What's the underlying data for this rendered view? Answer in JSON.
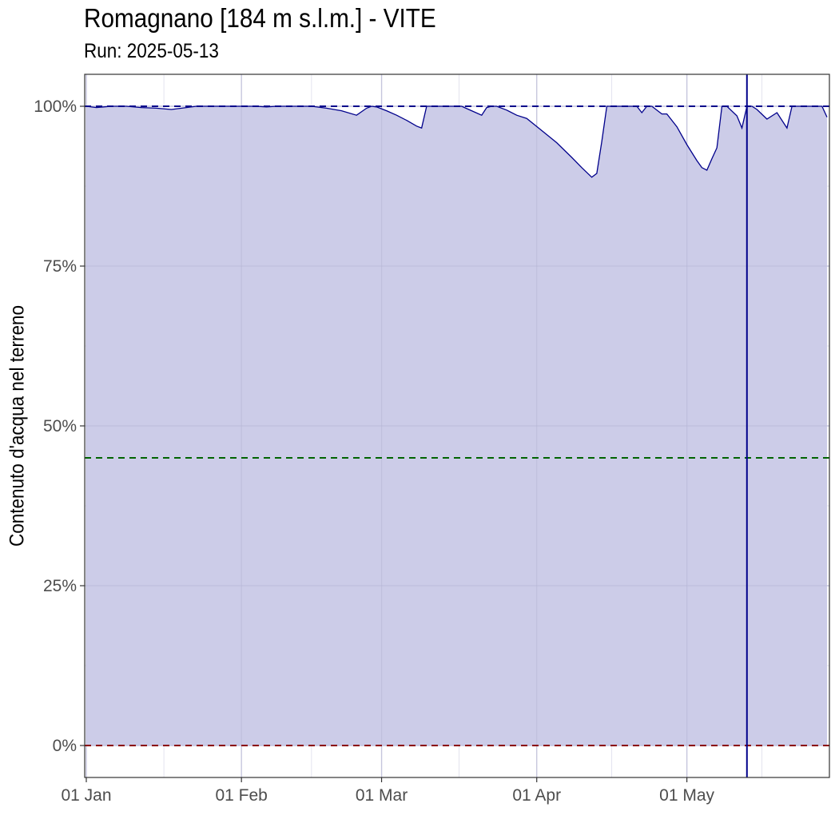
{
  "chart_data": {
    "type": "area",
    "title": "Romagnano [184 m s.l.m.] - VITE",
    "subtitle": "Run: 2025-05-13",
    "xlabel": "",
    "ylabel": "Contenuto d'acqua nel terreno",
    "x_range": [
      "2025-01-01",
      "2025-05-29"
    ],
    "ylim": [
      -0.05,
      1.05
    ],
    "y_ticks": [
      {
        "value": 0,
        "label": "0%"
      },
      {
        "value": 0.25,
        "label": "25%"
      },
      {
        "value": 0.5,
        "label": "50%"
      },
      {
        "value": 0.75,
        "label": "75%"
      },
      {
        "value": 1,
        "label": "100%"
      }
    ],
    "x_ticks": [
      {
        "date": "2025-01-01",
        "label": "01 Jan"
      },
      {
        "date": "2025-02-01",
        "label": "01 Feb"
      },
      {
        "date": "2025-03-01",
        "label": "01 Mar"
      },
      {
        "date": "2025-04-01",
        "label": "01 Apr"
      },
      {
        "date": "2025-05-01",
        "label": "01 May"
      }
    ],
    "grid": true,
    "reference_lines": [
      {
        "y": 1.0,
        "style": "dashed",
        "color": "#00008b"
      },
      {
        "y": 0.45,
        "style": "dashed",
        "color": "#006400"
      },
      {
        "y": 0.0,
        "style": "dashed",
        "color": "#8b0000"
      }
    ],
    "vline": {
      "date": "2025-05-13",
      "color": "#00008b"
    },
    "colors": {
      "line": "#00008b",
      "fill": "#cccce8",
      "panel_border": "#333333",
      "grid": "#d9d9e8"
    },
    "series": [
      {
        "points": [
          [
            "2025-01-01",
            1.0
          ],
          [
            "2025-01-03",
            0.998
          ],
          [
            "2025-01-06",
            1.0
          ],
          [
            "2025-01-09",
            1.0
          ],
          [
            "2025-01-12",
            0.998
          ],
          [
            "2025-01-15",
            0.997
          ],
          [
            "2025-01-18",
            0.995
          ],
          [
            "2025-01-21",
            0.998
          ],
          [
            "2025-01-23",
            1.0
          ],
          [
            "2025-01-27",
            1.0
          ],
          [
            "2025-02-01",
            1.0
          ],
          [
            "2025-02-04",
            1.0
          ],
          [
            "2025-02-06",
            0.999
          ],
          [
            "2025-02-08",
            1.0
          ],
          [
            "2025-02-12",
            1.0
          ],
          [
            "2025-02-15",
            1.0
          ],
          [
            "2025-02-18",
            0.997
          ],
          [
            "2025-02-21",
            0.993
          ],
          [
            "2025-02-24",
            0.986
          ],
          [
            "2025-02-26",
            0.997
          ],
          [
            "2025-02-27",
            1.0
          ],
          [
            "2025-02-28",
            0.999
          ],
          [
            "2025-03-02",
            0.993
          ],
          [
            "2025-03-04",
            0.986
          ],
          [
            "2025-03-06",
            0.978
          ],
          [
            "2025-03-08",
            0.969
          ],
          [
            "2025-03-09",
            0.966
          ],
          [
            "2025-03-10",
            1.0
          ],
          [
            "2025-03-13",
            1.0
          ],
          [
            "2025-03-17",
            1.0
          ],
          [
            "2025-03-19",
            0.993
          ],
          [
            "2025-03-21",
            0.986
          ],
          [
            "2025-03-22",
            0.998
          ],
          [
            "2025-03-23",
            1.0
          ],
          [
            "2025-03-24",
            1.0
          ],
          [
            "2025-03-26",
            0.994
          ],
          [
            "2025-03-28",
            0.986
          ],
          [
            "2025-03-30",
            0.981
          ],
          [
            "2025-04-02",
            0.962
          ],
          [
            "2025-04-05",
            0.943
          ],
          [
            "2025-04-08",
            0.92
          ],
          [
            "2025-04-10",
            0.904
          ],
          [
            "2025-04-12",
            0.889
          ],
          [
            "2025-04-13",
            0.895
          ],
          [
            "2025-04-14",
            0.945
          ],
          [
            "2025-04-15",
            1.0
          ],
          [
            "2025-04-19",
            1.0
          ],
          [
            "2025-04-21",
            1.0
          ],
          [
            "2025-04-22",
            0.99
          ],
          [
            "2025-04-23",
            1.0
          ],
          [
            "2025-04-24",
            1.0
          ],
          [
            "2025-04-26",
            0.988
          ],
          [
            "2025-04-27",
            0.988
          ],
          [
            "2025-04-29",
            0.968
          ],
          [
            "2025-05-01",
            0.94
          ],
          [
            "2025-05-03",
            0.915
          ],
          [
            "2025-05-04",
            0.904
          ],
          [
            "2025-05-05",
            0.9
          ],
          [
            "2025-05-06",
            0.918
          ],
          [
            "2025-05-07",
            0.935
          ],
          [
            "2025-05-08",
            1.0
          ],
          [
            "2025-05-09",
            1.0
          ],
          [
            "2025-05-11",
            0.985
          ],
          [
            "2025-05-12",
            0.966
          ],
          [
            "2025-05-13",
            1.0
          ],
          [
            "2025-05-14",
            1.0
          ],
          [
            "2025-05-15",
            0.995
          ],
          [
            "2025-05-17",
            0.98
          ],
          [
            "2025-05-19",
            0.99
          ],
          [
            "2025-05-21",
            0.966
          ],
          [
            "2025-05-22",
            1.0
          ],
          [
            "2025-05-24",
            1.0
          ],
          [
            "2025-05-28",
            1.0
          ],
          [
            "2025-05-29",
            0.983
          ]
        ]
      }
    ]
  }
}
